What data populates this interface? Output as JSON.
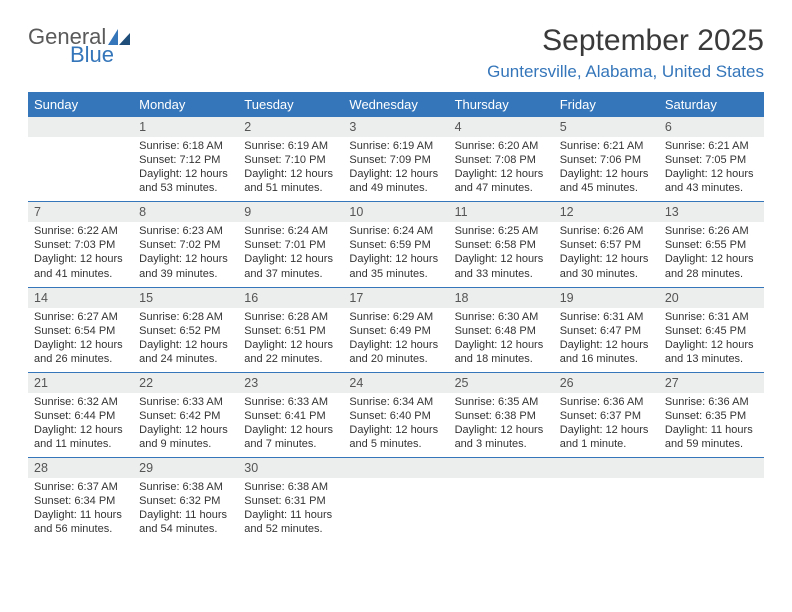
{
  "brand": {
    "general": "General",
    "blue": "Blue"
  },
  "title": "September 2025",
  "location": "Guntersville, Alabama, United States",
  "colors": {
    "header_bg": "#3576ba",
    "header_text": "#ffffff",
    "daynum_bg": "#eceded",
    "rule": "#3576ba",
    "text": "#333333",
    "title": "#3a3a3a"
  },
  "dow": [
    "Sunday",
    "Monday",
    "Tuesday",
    "Wednesday",
    "Thursday",
    "Friday",
    "Saturday"
  ],
  "weeks": [
    [
      {
        "n": "",
        "sunrise": "",
        "sunset": "",
        "daylight": ""
      },
      {
        "n": "1",
        "sunrise": "6:18 AM",
        "sunset": "7:12 PM",
        "daylight": "12 hours and 53 minutes."
      },
      {
        "n": "2",
        "sunrise": "6:19 AM",
        "sunset": "7:10 PM",
        "daylight": "12 hours and 51 minutes."
      },
      {
        "n": "3",
        "sunrise": "6:19 AM",
        "sunset": "7:09 PM",
        "daylight": "12 hours and 49 minutes."
      },
      {
        "n": "4",
        "sunrise": "6:20 AM",
        "sunset": "7:08 PM",
        "daylight": "12 hours and 47 minutes."
      },
      {
        "n": "5",
        "sunrise": "6:21 AM",
        "sunset": "7:06 PM",
        "daylight": "12 hours and 45 minutes."
      },
      {
        "n": "6",
        "sunrise": "6:21 AM",
        "sunset": "7:05 PM",
        "daylight": "12 hours and 43 minutes."
      }
    ],
    [
      {
        "n": "7",
        "sunrise": "6:22 AM",
        "sunset": "7:03 PM",
        "daylight": "12 hours and 41 minutes."
      },
      {
        "n": "8",
        "sunrise": "6:23 AM",
        "sunset": "7:02 PM",
        "daylight": "12 hours and 39 minutes."
      },
      {
        "n": "9",
        "sunrise": "6:24 AM",
        "sunset": "7:01 PM",
        "daylight": "12 hours and 37 minutes."
      },
      {
        "n": "10",
        "sunrise": "6:24 AM",
        "sunset": "6:59 PM",
        "daylight": "12 hours and 35 minutes."
      },
      {
        "n": "11",
        "sunrise": "6:25 AM",
        "sunset": "6:58 PM",
        "daylight": "12 hours and 33 minutes."
      },
      {
        "n": "12",
        "sunrise": "6:26 AM",
        "sunset": "6:57 PM",
        "daylight": "12 hours and 30 minutes."
      },
      {
        "n": "13",
        "sunrise": "6:26 AM",
        "sunset": "6:55 PM",
        "daylight": "12 hours and 28 minutes."
      }
    ],
    [
      {
        "n": "14",
        "sunrise": "6:27 AM",
        "sunset": "6:54 PM",
        "daylight": "12 hours and 26 minutes."
      },
      {
        "n": "15",
        "sunrise": "6:28 AM",
        "sunset": "6:52 PM",
        "daylight": "12 hours and 24 minutes."
      },
      {
        "n": "16",
        "sunrise": "6:28 AM",
        "sunset": "6:51 PM",
        "daylight": "12 hours and 22 minutes."
      },
      {
        "n": "17",
        "sunrise": "6:29 AM",
        "sunset": "6:49 PM",
        "daylight": "12 hours and 20 minutes."
      },
      {
        "n": "18",
        "sunrise": "6:30 AM",
        "sunset": "6:48 PM",
        "daylight": "12 hours and 18 minutes."
      },
      {
        "n": "19",
        "sunrise": "6:31 AM",
        "sunset": "6:47 PM",
        "daylight": "12 hours and 16 minutes."
      },
      {
        "n": "20",
        "sunrise": "6:31 AM",
        "sunset": "6:45 PM",
        "daylight": "12 hours and 13 minutes."
      }
    ],
    [
      {
        "n": "21",
        "sunrise": "6:32 AM",
        "sunset": "6:44 PM",
        "daylight": "12 hours and 11 minutes."
      },
      {
        "n": "22",
        "sunrise": "6:33 AM",
        "sunset": "6:42 PM",
        "daylight": "12 hours and 9 minutes."
      },
      {
        "n": "23",
        "sunrise": "6:33 AM",
        "sunset": "6:41 PM",
        "daylight": "12 hours and 7 minutes."
      },
      {
        "n": "24",
        "sunrise": "6:34 AM",
        "sunset": "6:40 PM",
        "daylight": "12 hours and 5 minutes."
      },
      {
        "n": "25",
        "sunrise": "6:35 AM",
        "sunset": "6:38 PM",
        "daylight": "12 hours and 3 minutes."
      },
      {
        "n": "26",
        "sunrise": "6:36 AM",
        "sunset": "6:37 PM",
        "daylight": "12 hours and 1 minute."
      },
      {
        "n": "27",
        "sunrise": "6:36 AM",
        "sunset": "6:35 PM",
        "daylight": "11 hours and 59 minutes."
      }
    ],
    [
      {
        "n": "28",
        "sunrise": "6:37 AM",
        "sunset": "6:34 PM",
        "daylight": "11 hours and 56 minutes."
      },
      {
        "n": "29",
        "sunrise": "6:38 AM",
        "sunset": "6:32 PM",
        "daylight": "11 hours and 54 minutes."
      },
      {
        "n": "30",
        "sunrise": "6:38 AM",
        "sunset": "6:31 PM",
        "daylight": "11 hours and 52 minutes."
      },
      {
        "n": "",
        "sunrise": "",
        "sunset": "",
        "daylight": ""
      },
      {
        "n": "",
        "sunrise": "",
        "sunset": "",
        "daylight": ""
      },
      {
        "n": "",
        "sunrise": "",
        "sunset": "",
        "daylight": ""
      },
      {
        "n": "",
        "sunrise": "",
        "sunset": "",
        "daylight": ""
      }
    ]
  ],
  "labels": {
    "sunrise": "Sunrise: ",
    "sunset": "Sunset: ",
    "daylight": "Daylight: "
  }
}
